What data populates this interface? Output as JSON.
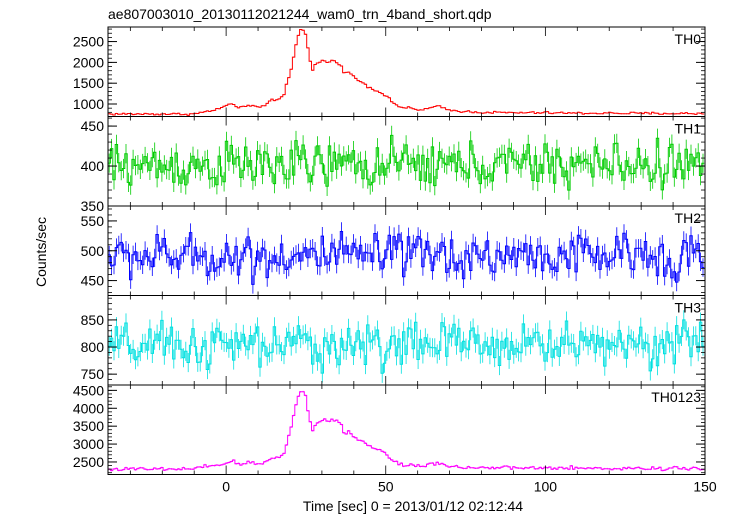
{
  "chart_data": {
    "type": "line",
    "title": "ae807003010_20130112021244_wam0_trn_4band_short.qdp",
    "xlabel": "Time [sec] 0 = 2013/01/12 02:12:44",
    "ylabel": "Counts/sec",
    "xlim": [
      -37,
      150
    ],
    "x_ticks": [
      0,
      50,
      100,
      150
    ],
    "panels": [
      {
        "name": "TH0",
        "color": "#ff0000",
        "ylim": [
          700,
          2850
        ],
        "y_ticks": [
          1000,
          1500,
          2000,
          2500
        ],
        "profile": [
          [
            -37,
            760
          ],
          [
            -10,
            760
          ],
          [
            -6,
            820
          ],
          [
            -2,
            880
          ],
          [
            0,
            980
          ],
          [
            2,
            1000
          ],
          [
            4,
            880
          ],
          [
            6,
            960
          ],
          [
            8,
            980
          ],
          [
            10,
            900
          ],
          [
            12,
            950
          ],
          [
            14,
            1100
          ],
          [
            16,
            1100
          ],
          [
            18,
            1200
          ],
          [
            19,
            1500
          ],
          [
            20,
            1700
          ],
          [
            21,
            2100
          ],
          [
            22,
            2500
          ],
          [
            23,
            2750
          ],
          [
            24,
            2800
          ],
          [
            25,
            2650
          ],
          [
            26,
            2150
          ],
          [
            27,
            1800
          ],
          [
            28,
            1950
          ],
          [
            30,
            2050
          ],
          [
            32,
            2000
          ],
          [
            34,
            2050
          ],
          [
            36,
            1950
          ],
          [
            37,
            1700
          ],
          [
            38,
            1800
          ],
          [
            40,
            1650
          ],
          [
            42,
            1550
          ],
          [
            44,
            1450
          ],
          [
            46,
            1350
          ],
          [
            48,
            1300
          ],
          [
            50,
            1200
          ],
          [
            52,
            1050
          ],
          [
            54,
            950
          ],
          [
            56,
            900
          ],
          [
            58,
            900
          ],
          [
            60,
            850
          ],
          [
            62,
            880
          ],
          [
            64,
            900
          ],
          [
            66,
            950
          ],
          [
            68,
            900
          ],
          [
            70,
            850
          ],
          [
            75,
            820
          ],
          [
            80,
            800
          ],
          [
            90,
            790
          ],
          [
            100,
            790
          ],
          [
            110,
            780
          ],
          [
            120,
            780
          ],
          [
            130,
            775
          ],
          [
            150,
            770
          ]
        ],
        "noise": 22
      },
      {
        "name": "TH1",
        "color": "#00cc00",
        "ylim": [
          350,
          462
        ],
        "y_ticks": [
          350,
          400,
          450
        ],
        "profile": [
          [
            -37,
            400
          ],
          [
            150,
            402
          ]
        ],
        "noise": 22
      },
      {
        "name": "TH2",
        "color": "#0000ff",
        "ylim": [
          425,
          575
        ],
        "y_ticks": [
          450,
          500,
          550
        ],
        "profile": [
          [
            -37,
            490
          ],
          [
            150,
            492
          ]
        ],
        "noise": 28
      },
      {
        "name": "TH3",
        "color": "#00e0e0",
        "ylim": [
          730,
          895
        ],
        "y_ticks": [
          750,
          800,
          850
        ],
        "profile": [
          [
            -37,
            800
          ],
          [
            150,
            808
          ]
        ],
        "noise": 32
      },
      {
        "name": "TH0123",
        "color": "#ff00ff",
        "ylim": [
          2150,
          4650
        ],
        "y_ticks": [
          2500,
          3000,
          3500,
          4000,
          4500
        ],
        "profile": [
          [
            -37,
            2300
          ],
          [
            -10,
            2300
          ],
          [
            -6,
            2370
          ],
          [
            -2,
            2420
          ],
          [
            0,
            2480
          ],
          [
            2,
            2520
          ],
          [
            4,
            2420
          ],
          [
            6,
            2470
          ],
          [
            8,
            2500
          ],
          [
            10,
            2420
          ],
          [
            12,
            2460
          ],
          [
            14,
            2620
          ],
          [
            16,
            2620
          ],
          [
            18,
            2720
          ],
          [
            19,
            3050
          ],
          [
            20,
            3300
          ],
          [
            21,
            3750
          ],
          [
            22,
            4200
          ],
          [
            23,
            4450
          ],
          [
            24,
            4500
          ],
          [
            25,
            4300
          ],
          [
            26,
            3750
          ],
          [
            27,
            3350
          ],
          [
            28,
            3550
          ],
          [
            30,
            3680
          ],
          [
            32,
            3650
          ],
          [
            34,
            3700
          ],
          [
            36,
            3560
          ],
          [
            37,
            3250
          ],
          [
            38,
            3380
          ],
          [
            40,
            3220
          ],
          [
            42,
            3100
          ],
          [
            44,
            3000
          ],
          [
            46,
            2900
          ],
          [
            48,
            2850
          ],
          [
            50,
            2720
          ],
          [
            52,
            2550
          ],
          [
            54,
            2450
          ],
          [
            56,
            2420
          ],
          [
            58,
            2420
          ],
          [
            60,
            2380
          ],
          [
            62,
            2400
          ],
          [
            64,
            2430
          ],
          [
            66,
            2500
          ],
          [
            68,
            2430
          ],
          [
            70,
            2380
          ],
          [
            75,
            2350
          ],
          [
            80,
            2340
          ],
          [
            90,
            2330
          ],
          [
            100,
            2330
          ],
          [
            110,
            2320
          ],
          [
            120,
            2320
          ],
          [
            130,
            2320
          ],
          [
            150,
            2330
          ]
        ],
        "noise": 40
      }
    ]
  }
}
